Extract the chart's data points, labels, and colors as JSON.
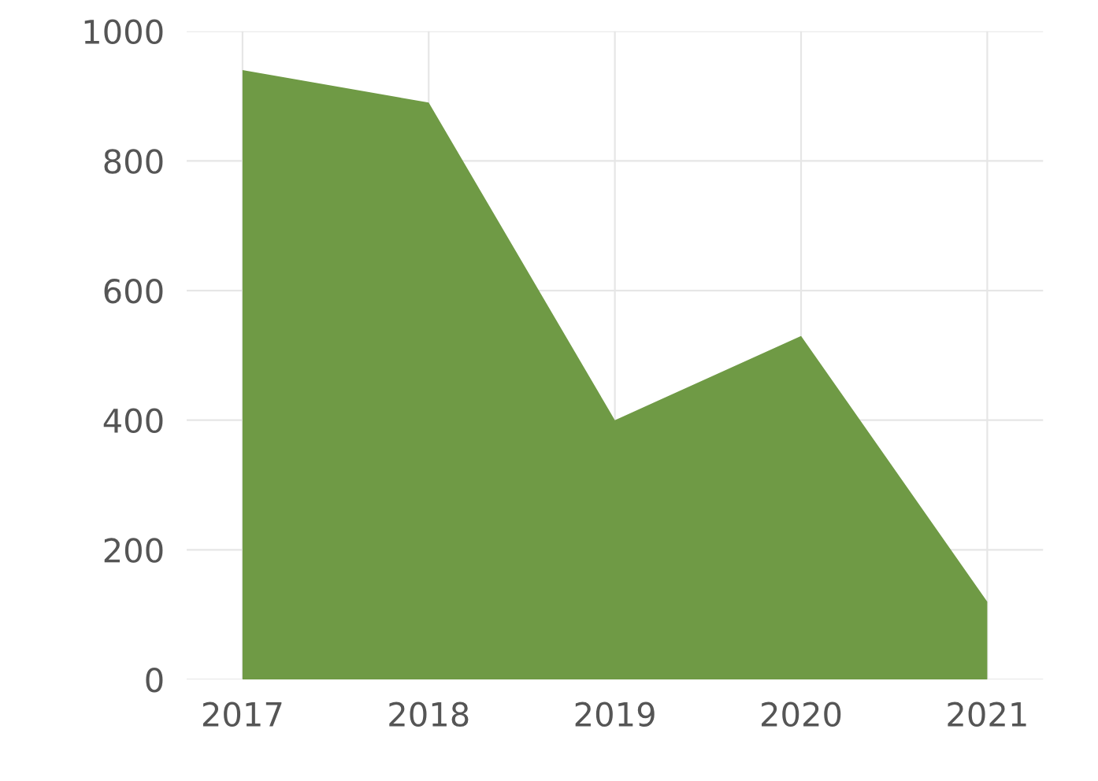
{
  "chart_data": {
    "type": "area",
    "categories": [
      "2017",
      "2018",
      "2019",
      "2020",
      "2021"
    ],
    "series": [
      {
        "color": "#6f9a45",
        "values": [
          940,
          890,
          400,
          530,
          120
        ]
      }
    ],
    "ylim": [
      0,
      1000
    ],
    "yticks": [
      0,
      200,
      400,
      600,
      800,
      1000
    ],
    "grid": true
  }
}
